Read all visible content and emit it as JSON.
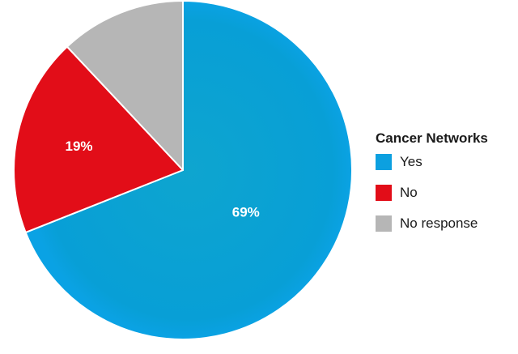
{
  "chart_data": {
    "type": "pie",
    "title": "",
    "legend_title": "Cancer Networks",
    "legend_position": "right",
    "slices": [
      {
        "label": "Yes",
        "value": 69,
        "display": "69%",
        "color": "#0ca0e0"
      },
      {
        "label": "No",
        "value": 19,
        "display": "19%",
        "color": "#e20d18"
      },
      {
        "label": "No response",
        "value": 12,
        "display": "",
        "color": "#b6b6b6"
      }
    ]
  }
}
